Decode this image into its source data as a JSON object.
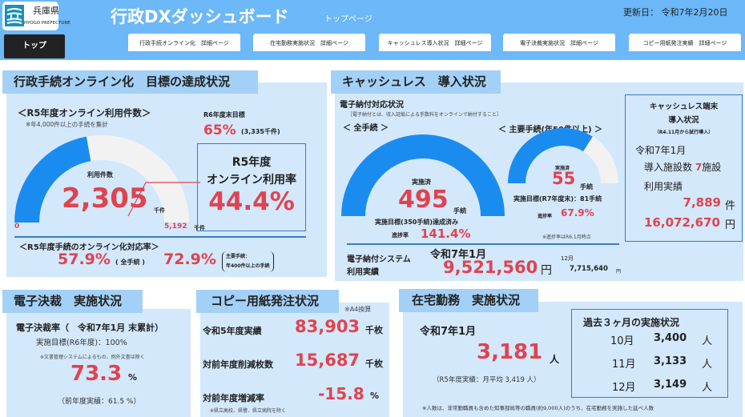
{
  "header": {
    "pref_name": "兵庫県",
    "pref_en": "HYOGO PREFECTURE",
    "title": "行政DXダッシュボード",
    "subtitle": "トップページ",
    "updated": "更新日： 令和7年2月20日",
    "bg_color": "#6cb8f8"
  },
  "nav": {
    "tabs": [
      {
        "label": "トップ",
        "active": true
      },
      {
        "label": "行政手続オンライン化　詳細ページ"
      },
      {
        "label": "在宅勤務実施状況　詳細ページ"
      },
      {
        "label": "キャッシュレス導入状況　詳細ページ"
      },
      {
        "label": "電子決裁実施状況　詳細ページ"
      },
      {
        "label": "コピー用紙発注実績　詳細ページ"
      }
    ]
  },
  "colors": {
    "accent_red": "#e0434f",
    "gauge_blue": "#1a8cf0",
    "gauge_track": "#f2f2f2",
    "panel_bg": "#d3e8fb",
    "title_bg": "#a3d0f7"
  },
  "online": {
    "title": "行政手続オンライン化　目標の達成状況",
    "usage_heading": "＜R5年度オンライン利用件数＞",
    "usage_note": "※年4,000件以上の手続を集計",
    "target_label": "R6年度末目標",
    "target_pct": "65%",
    "target_count": "(3,335千件)",
    "center_label": "利用件数",
    "value": "2,305",
    "value_unit": "千件",
    "gauge_min": "0",
    "gauge_max": "5,192",
    "gauge_max_unit": "千件",
    "gauge_value_num": 2305,
    "gauge_max_num": 5192,
    "gauge_target_num": 3335,
    "rate_title1": "R5年度",
    "rate_title2": "オンライン利用率",
    "rate_value": "44.4%",
    "coverage_heading": "＜R5年度手続のオンライン化対応率＞",
    "coverage_all": "57.9%",
    "coverage_all_label": "( 全手続 )",
    "coverage_major": "72.9%",
    "coverage_major_note1": "主要手続：",
    "coverage_major_note2": "年400件以上の手続"
  },
  "cashless": {
    "title": "キャッシュレス　導入状況",
    "epay_heading": "電子納付対応状況",
    "epay_note": "［電子納付とは、収入証紙による手数料をオンラインで納付すること］",
    "all_heading": "＜ 全手続 ＞",
    "all_done_label": "実施済",
    "all_value": "495",
    "all_unit": "手続",
    "all_target": "実施目標(350手続)達成済み",
    "all_progress_label": "進捗率",
    "all_progress": "141.4%",
    "all_fill": 1.0,
    "major_heading": "＜ 主要手続(年50件以上) ＞",
    "major_done_label": "実施済",
    "major_value": "55",
    "major_unit": "手続",
    "major_target": "実施目標(R7年度末)：81手続",
    "major_progress_label": "進捗率",
    "major_progress": "67.9%",
    "major_fill": 0.679,
    "progress_note": "※進捗率はR6.1月時点",
    "system_label1": "電子納付システム",
    "system_label2": "利用実績",
    "system_month": "令和7年1月",
    "system_value": "9,521,560",
    "system_unit": "円",
    "prev_month": "12月",
    "prev_value": "7,715,640",
    "prev_unit": "円",
    "terminal": {
      "title1": "キャッシュレス端末",
      "title2": "導入状況",
      "note": "（R4.11月から試行導入）",
      "month": "令和7年1月",
      "facilities_label": "導入施設数",
      "facilities": "7",
      "facilities_unit": "施設",
      "usage_label": "利用実績",
      "count": "7,889",
      "count_unit": "件",
      "amount": "16,072,670",
      "amount_unit": "円"
    }
  },
  "esign": {
    "title": "電子決裁　実施状況",
    "rate_label": "電子決裁率（　令和7年1月 末累計）",
    "target": "実施目標(R6年度)：100%",
    "note": "※文書管理システムによるもの、例外文書は除く",
    "value": "73.3",
    "unit": "%",
    "prev": "（前年度実績：61.5 %）"
  },
  "copy": {
    "title": "コピー用紙発注状況",
    "note": "※A4換算",
    "rows": [
      {
        "label": "令和5年度実績",
        "value": "83,903",
        "unit": "千枚"
      },
      {
        "label": "対前年度削減枚数",
        "value": "15,687",
        "unit": "千枚"
      },
      {
        "label": "対前年度増減率",
        "value": "-15.8",
        "unit": "%"
      }
    ],
    "footnote": "※県立高校、県警、県立病院を除く"
  },
  "telework": {
    "title": "在宅勤務　実施状況",
    "month": "令和7年1月",
    "value": "3,181",
    "unit": "人",
    "avg": "（R5年度実績：月平均 3,419 人）",
    "history_title": "過去３ヶ月の実施状況",
    "history": [
      {
        "month": "10月",
        "value": "3,400",
        "unit": "人"
      },
      {
        "month": "11月",
        "value": "3,133",
        "unit": "人"
      },
      {
        "month": "12月",
        "value": "3,149",
        "unit": "人"
      }
    ],
    "footnote": "※人数は、非常勤職員も含めた知事部局等の職員(約9,000人)のうち、在宅勤務を実施した延べ人数"
  }
}
